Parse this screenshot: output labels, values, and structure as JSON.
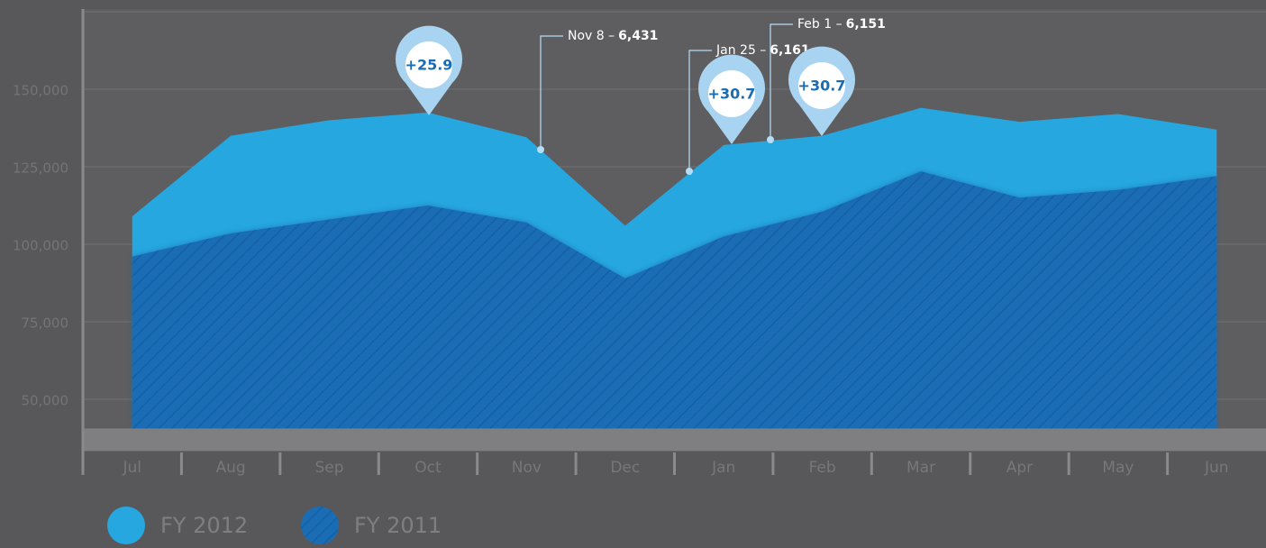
{
  "chart_data": {
    "type": "area",
    "categories": [
      "Jul",
      "Aug",
      "Sep",
      "Oct",
      "Nov",
      "Dec",
      "Jan",
      "Feb",
      "Mar",
      "Apr",
      "May",
      "Jun"
    ],
    "series": [
      {
        "name": "FY 2012",
        "color": "#26a7e0",
        "values": [
          109000,
          135000,
          140000,
          142500,
          134500,
          106000,
          132000,
          135000,
          144000,
          139500,
          142000,
          137000
        ]
      },
      {
        "name": "FY 2011",
        "color": "#1a6db5",
        "hatched": true,
        "values": [
          96000,
          103500,
          108000,
          112500,
          107000,
          89000,
          102500,
          110500,
          123500,
          115000,
          117500,
          122000
        ]
      }
    ],
    "ylim": [
      40000,
      175000
    ],
    "yticks": [
      {
        "value": 50000,
        "label": "50,000"
      },
      {
        "value": 75000,
        "label": "75,000"
      },
      {
        "value": 100000,
        "label": "100,000"
      },
      {
        "value": 125000,
        "label": "125,000"
      },
      {
        "value": 150000,
        "label": "150,000"
      }
    ],
    "grid": true,
    "legend": "bottom-left",
    "pins": [
      "+25.9",
      "+30.7",
      "+30.7"
    ],
    "callouts": [
      {
        "date": "Nov 8 –",
        "value": 6431,
        "label": "6,431"
      },
      {
        "date": "Jan 25 –",
        "value": 6161,
        "label": "6,161"
      },
      {
        "date": "Feb 1 –",
        "value": 6151,
        "label": "6,151"
      }
    ]
  }
}
